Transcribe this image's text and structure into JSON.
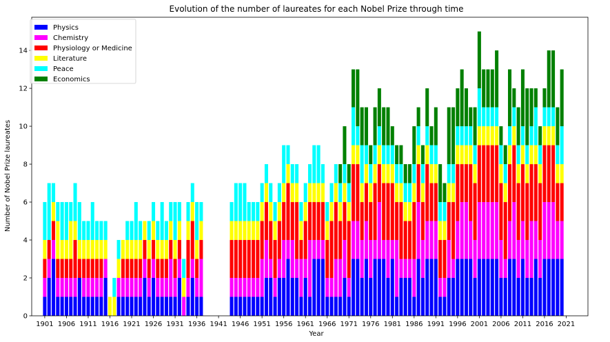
{
  "chart_data": {
    "type": "bar",
    "stacked": true,
    "title": "Evolution of the number of laureates for each Nobel Prize through time",
    "xlabel": "Year",
    "ylabel": "Number of Nobel Prize laureates",
    "xlim": [
      1898,
      2026
    ],
    "ylim": [
      0,
      15.75
    ],
    "x_ticks": [
      1901,
      1906,
      1911,
      1916,
      1921,
      1926,
      1931,
      1936,
      1941,
      1946,
      1951,
      1956,
      1961,
      1966,
      1971,
      1976,
      1981,
      1986,
      1991,
      1996,
      2001,
      2006,
      2011,
      2016,
      2021
    ],
    "y_ticks": [
      0,
      2,
      4,
      6,
      8,
      10,
      12,
      14
    ],
    "legend_position": "top-left",
    "grid": false,
    "x_start": 1901,
    "series": [
      {
        "name": "Physics",
        "color": "#0000ff",
        "values": [
          1,
          2,
          3,
          1,
          1,
          1,
          1,
          1,
          2,
          1,
          1,
          1,
          1,
          1,
          2,
          0,
          0,
          1,
          1,
          1,
          1,
          1,
          1,
          2,
          1,
          2,
          1,
          1,
          1,
          1,
          1,
          2,
          0,
          1,
          2,
          1,
          1,
          0,
          0,
          0,
          0,
          0,
          0,
          1,
          1,
          1,
          1,
          1,
          1,
          1,
          1,
          2,
          2,
          1,
          2,
          2,
          3,
          2,
          2,
          1,
          2,
          1,
          3,
          3,
          3,
          1,
          1,
          1,
          1,
          2,
          1,
          3,
          3,
          2,
          3,
          2,
          3,
          3,
          3,
          2,
          3,
          1,
          2,
          2,
          2,
          1,
          3,
          2,
          3,
          3,
          3,
          1,
          1,
          2,
          2,
          3,
          3,
          3,
          3,
          2,
          3,
          3,
          3,
          3,
          3,
          2,
          2,
          3,
          3,
          2,
          3,
          2,
          2,
          3,
          2,
          3,
          3,
          3,
          3,
          3
        ],
        "Chemistry_unused": null
      },
      {
        "name": "Chemistry",
        "color": "#ff00ff",
        "values": [
          1,
          1,
          1,
          1,
          1,
          1,
          1,
          1,
          0,
          1,
          1,
          1,
          1,
          1,
          1,
          0,
          0,
          1,
          1,
          1,
          1,
          1,
          1,
          1,
          1,
          1,
          1,
          1,
          1,
          2,
          1,
          1,
          1,
          1,
          1,
          1,
          2,
          0,
          0,
          0,
          0,
          0,
          0,
          1,
          1,
          1,
          1,
          1,
          1,
          1,
          2,
          2,
          1,
          1,
          1,
          2,
          1,
          2,
          1,
          2,
          1,
          3,
          1,
          1,
          1,
          1,
          1,
          2,
          2,
          2,
          1,
          2,
          2,
          2,
          2,
          2,
          1,
          3,
          1,
          2,
          1,
          3,
          1,
          1,
          1,
          2,
          3,
          2,
          2,
          2,
          2,
          1,
          1,
          2,
          1,
          2,
          3,
          3,
          2,
          2,
          3,
          3,
          3,
          3,
          3,
          2,
          1,
          2,
          3,
          2,
          2,
          2,
          3,
          2,
          2,
          3,
          3,
          3,
          2,
          2
        ]
      },
      {
        "name": "Physiology or Medicine",
        "color": "#ff0000",
        "values": [
          1,
          1,
          1,
          1,
          1,
          1,
          1,
          2,
          1,
          1,
          1,
          1,
          1,
          1,
          0,
          0,
          0,
          0,
          1,
          1,
          1,
          1,
          1,
          1,
          1,
          1,
          1,
          1,
          1,
          1,
          1,
          1,
          0,
          2,
          2,
          1,
          1,
          0,
          0,
          0,
          0,
          0,
          0,
          2,
          2,
          2,
          2,
          2,
          2,
          2,
          2,
          2,
          2,
          2,
          2,
          2,
          3,
          2,
          3,
          1,
          2,
          2,
          2,
          2,
          2,
          2,
          3,
          3,
          2,
          2,
          3,
          3,
          3,
          2,
          2,
          2,
          3,
          2,
          3,
          3,
          3,
          2,
          3,
          2,
          2,
          3,
          2,
          2,
          3,
          2,
          2,
          2,
          2,
          2,
          3,
          3,
          2,
          2,
          3,
          3,
          3,
          3,
          3,
          3,
          3,
          3,
          3,
          3,
          3,
          3,
          3,
          3,
          3,
          3,
          3,
          3,
          3,
          3,
          2,
          2
        ]
      },
      {
        "name": "Literature",
        "color": "#ffff00",
        "values": [
          1,
          0,
          1,
          2,
          1,
          1,
          2,
          1,
          1,
          1,
          1,
          1,
          1,
          1,
          1,
          1,
          1,
          1,
          1,
          1,
          1,
          1,
          1,
          1,
          1,
          1,
          1,
          1,
          1,
          1,
          1,
          1,
          1,
          1,
          1,
          1,
          1,
          0,
          0,
          0,
          0,
          0,
          0,
          1,
          1,
          1,
          1,
          1,
          1,
          1,
          1,
          1,
          1,
          1,
          1,
          1,
          1,
          1,
          1,
          1,
          1,
          1,
          1,
          1,
          1,
          1,
          1,
          1,
          1,
          1,
          1,
          1,
          1,
          1,
          1,
          1,
          1,
          1,
          1,
          1,
          1,
          1,
          1,
          1,
          1,
          1,
          1,
          1,
          1,
          1,
          1,
          1,
          1,
          1,
          1,
          1,
          1,
          1,
          1,
          1,
          1,
          1,
          1,
          1,
          1,
          1,
          1,
          1,
          1,
          1,
          1,
          1,
          1,
          1,
          1,
          1,
          1,
          1,
          1,
          1
        ]
      },
      {
        "name": "Peace",
        "color": "#00ffff",
        "values": [
          2,
          3,
          1,
          1,
          2,
          2,
          1,
          2,
          2,
          1,
          1,
          2,
          1,
          1,
          1,
          0,
          1,
          1,
          0,
          1,
          1,
          2,
          1,
          0,
          1,
          1,
          1,
          2,
          1,
          1,
          2,
          1,
          1,
          1,
          1,
          2,
          1,
          0,
          0,
          0,
          0,
          0,
          0,
          1,
          2,
          2,
          2,
          1,
          1,
          1,
          1,
          1,
          1,
          1,
          1,
          2,
          1,
          1,
          1,
          1,
          1,
          1,
          2,
          2,
          1,
          1,
          1,
          1,
          1,
          1,
          1,
          2,
          1,
          2,
          1,
          1,
          1,
          1,
          1,
          1,
          1,
          1,
          1,
          1,
          1,
          1,
          1,
          1,
          1,
          1,
          1,
          1,
          1,
          1,
          1,
          1,
          1,
          1,
          1,
          1,
          2,
          1,
          1,
          1,
          1,
          1,
          1,
          1,
          1,
          1,
          1,
          1,
          1,
          2,
          1,
          1,
          1,
          1,
          1,
          2
        ]
      },
      {
        "name": "Economics",
        "color": "#008000",
        "values": [
          0,
          0,
          0,
          0,
          0,
          0,
          0,
          0,
          0,
          0,
          0,
          0,
          0,
          0,
          0,
          0,
          0,
          0,
          0,
          0,
          0,
          0,
          0,
          0,
          0,
          0,
          0,
          0,
          0,
          0,
          0,
          0,
          0,
          0,
          0,
          0,
          0,
          0,
          0,
          0,
          0,
          0,
          0,
          0,
          0,
          0,
          0,
          0,
          0,
          0,
          0,
          0,
          0,
          0,
          0,
          0,
          0,
          0,
          0,
          0,
          0,
          0,
          0,
          0,
          0,
          0,
          0,
          0,
          1,
          2,
          1,
          2,
          3,
          2,
          2,
          1,
          2,
          2,
          2,
          2,
          1,
          1,
          1,
          1,
          1,
          2,
          1,
          1,
          2,
          1,
          2,
          2,
          1,
          3,
          3,
          2,
          3,
          2,
          1,
          2,
          3,
          2,
          2,
          2,
          3,
          1,
          1,
          3,
          1,
          2,
          3,
          3,
          2,
          1,
          1,
          1,
          3,
          3,
          2,
          3
        ]
      }
    ]
  }
}
